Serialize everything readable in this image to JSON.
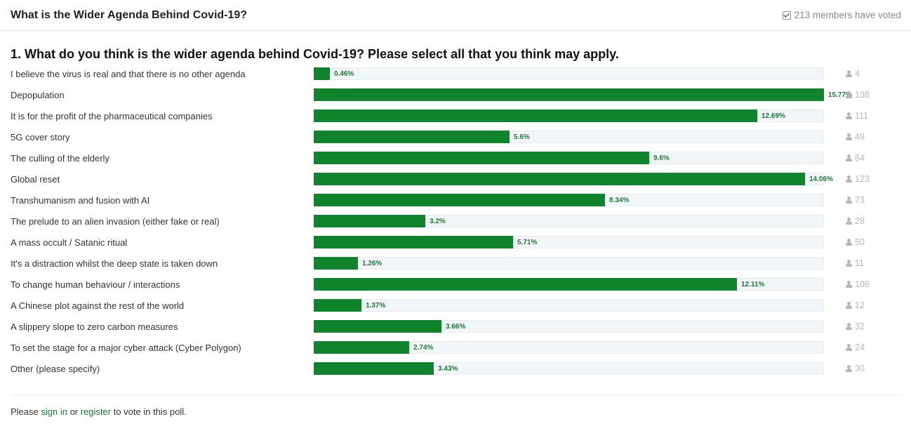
{
  "poll": {
    "title": "What is the Wider Agenda Behind Covid-19?",
    "members_voted": "213 members have voted",
    "question": "1. What do you think is the wider agenda behind Covid-19? Please select all that you think may apply."
  },
  "colors": {
    "bar": "#10832c",
    "track": "#f3f6f8",
    "link": "#1f6f3a"
  },
  "options": [
    {
      "label": "I believe the virus is real and that there is no other agenda",
      "percent": "0.46%",
      "value": 0.46,
      "votes": "4"
    },
    {
      "label": "Depopulation",
      "percent": "15.77%",
      "value": 15.77,
      "votes": "138"
    },
    {
      "label": "It is for the profit of the pharmaceutical companies",
      "percent": "12.69%",
      "value": 12.69,
      "votes": "111"
    },
    {
      "label": "5G cover story",
      "percent": "5.6%",
      "value": 5.6,
      "votes": "49"
    },
    {
      "label": "The culling of the elderly",
      "percent": "9.6%",
      "value": 9.6,
      "votes": "84"
    },
    {
      "label": "Global reset",
      "percent": "14.06%",
      "value": 14.06,
      "votes": "123"
    },
    {
      "label": "Transhumanism and fusion with AI",
      "percent": "8.34%",
      "value": 8.34,
      "votes": "73"
    },
    {
      "label": "The prelude to an alien invasion (either fake or real)",
      "percent": "3.2%",
      "value": 3.2,
      "votes": "28"
    },
    {
      "label": "A mass occult / Satanic ritual",
      "percent": "5.71%",
      "value": 5.71,
      "votes": "50"
    },
    {
      "label": "It's a distraction whilst the deep state is taken down",
      "percent": "1.26%",
      "value": 1.26,
      "votes": "11"
    },
    {
      "label": "To change human behaviour / interactions",
      "percent": "12.11%",
      "value": 12.11,
      "votes": "106"
    },
    {
      "label": "A Chinese plot against the rest of the world",
      "percent": "1.37%",
      "value": 1.37,
      "votes": "12"
    },
    {
      "label": "A slippery slope to zero carbon measures",
      "percent": "3.66%",
      "value": 3.66,
      "votes": "32"
    },
    {
      "label": "To set the stage for a major cyber attack (Cyber Polygon)",
      "percent": "2.74%",
      "value": 2.74,
      "votes": "24"
    },
    {
      "label": "Other (please specify)",
      "percent": "3.43%",
      "value": 3.43,
      "votes": "30"
    }
  ],
  "footer": {
    "prefix": "Please ",
    "sign_in": "sign in",
    "middle": " or ",
    "register": "register",
    "suffix": " to vote in this poll."
  }
}
